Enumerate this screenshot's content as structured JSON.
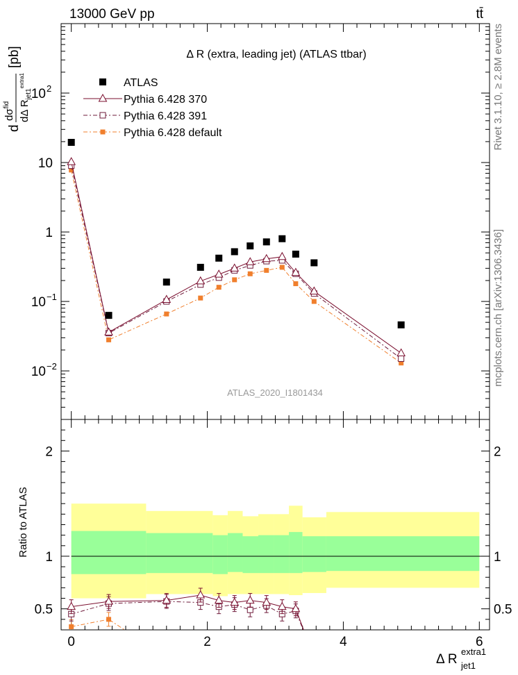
{
  "header": {
    "left": "13000 GeV pp",
    "right": "tt̄"
  },
  "side_labels": {
    "rivet": "Rivet 3.1.10, ≥ 2.8M events",
    "mcplots": "mcplots.cern.ch [arXiv:1306.3436]"
  },
  "chart_data": {
    "type": "scatter",
    "title": "Δ R (extra, leading jet) (ATLAS ttbar)",
    "watermark": "ATLAS_2020_I1801434",
    "xlabel": "Δ R",
    "xlabel_sup": "extra1",
    "xlabel_sub": "jet1",
    "ylabel": "dσ/dΔR [pb]",
    "ylabel_parts": {
      "d": "d",
      "sigma": "dσ",
      "fid": "fid",
      "den": "dΔ R",
      "den_sub": "jet1",
      "den_sup": "extra1",
      "unit": "[pb]"
    },
    "xlim": [
      -0.15,
      6.15
    ],
    "ylim_log": [
      0.002,
      1000
    ],
    "x_ticks": [
      0,
      2,
      4,
      6
    ],
    "x_tick_labels": [
      "0",
      "2",
      "4",
      "6"
    ],
    "y_ticks": [
      {
        "v": 0.01,
        "base": "10",
        "exp": "−2"
      },
      {
        "v": 0.1,
        "base": "10",
        "exp": "−1"
      },
      {
        "v": 1,
        "base": "1",
        "exp": ""
      },
      {
        "v": 10,
        "base": "10",
        "exp": ""
      },
      {
        "v": 100,
        "base": "10",
        "exp": "2"
      }
    ],
    "legend": [
      "ATLAS",
      "Pythia 6.428 370",
      "Pythia 6.428 391",
      "Pythia 6.428 default"
    ],
    "atlas": {
      "name": "ATLAS",
      "x": [
        0.0,
        0.55,
        1.4,
        1.9,
        2.17,
        2.4,
        2.63,
        2.87,
        3.1,
        3.3,
        3.57,
        4.85
      ],
      "y": [
        19.5,
        0.063,
        0.19,
        0.31,
        0.42,
        0.52,
        0.63,
        0.72,
        0.8,
        0.48,
        0.36,
        0.046
      ]
    },
    "series": [
      {
        "name": "Pythia 6.428 370",
        "color": "#7a0e2e",
        "marker": "triangle-open",
        "dash": "",
        "x": [
          0.0,
          0.55,
          1.4,
          1.9,
          2.17,
          2.4,
          2.63,
          2.87,
          3.1,
          3.3,
          3.57,
          4.85
        ],
        "y": [
          10.2,
          0.036,
          0.106,
          0.196,
          0.245,
          0.3,
          0.37,
          0.41,
          0.44,
          0.26,
          0.14,
          0.018
        ],
        "ratio": [
          0.52,
          0.57,
          0.58,
          0.63,
          0.58,
          0.56,
          0.58,
          0.56,
          0.52,
          0.5,
          null,
          null
        ]
      },
      {
        "name": "Pythia 6.428 391",
        "color": "#6e1a3a",
        "marker": "square-open",
        "dash": "6,3,2,3",
        "x": [
          0.0,
          0.55,
          1.4,
          1.9,
          2.17,
          2.4,
          2.63,
          2.87,
          3.1,
          3.3,
          3.57,
          4.85
        ],
        "y": [
          9.0,
          0.035,
          0.1,
          0.175,
          0.22,
          0.28,
          0.33,
          0.38,
          0.39,
          0.25,
          0.13,
          0.015
        ],
        "ratio": [
          0.45,
          0.55,
          0.57,
          0.56,
          0.52,
          0.54,
          0.49,
          0.53,
          0.45,
          0.48,
          null,
          null
        ]
      },
      {
        "name": "Pythia 6.428 default",
        "color": "#f07f2d",
        "marker": "square-filled",
        "dash": "6,3,2,3",
        "x": [
          0.0,
          0.55,
          1.4,
          1.9,
          2.17,
          2.4,
          2.63,
          2.87,
          3.1,
          3.3,
          3.57,
          4.85
        ],
        "y": [
          7.8,
          0.028,
          0.066,
          0.112,
          0.16,
          0.205,
          0.25,
          0.28,
          0.31,
          0.18,
          0.1,
          0.013
        ],
        "ratio": [
          0.33,
          0.4,
          null,
          null,
          null,
          null,
          null,
          null,
          null,
          null,
          null,
          null
        ]
      }
    ],
    "ratio_panel": {
      "ylabel": "Ratio to ATLAS",
      "ylim": [
        0.3,
        2.3
      ],
      "y_ticks": [
        0.5,
        1,
        2
      ],
      "y_tick_labels": [
        "0.5",
        "1",
        "2"
      ],
      "bins": [
        {
          "lo": 0.0,
          "hi": 1.1,
          "inner": [
            0.83,
            1.24
          ],
          "outer": [
            0.6,
            1.5
          ]
        },
        {
          "lo": 1.1,
          "hi": 2.08,
          "inner": [
            0.84,
            1.22
          ],
          "outer": [
            0.64,
            1.43
          ]
        },
        {
          "lo": 2.08,
          "hi": 2.3,
          "inner": [
            0.83,
            1.2
          ],
          "outer": [
            0.62,
            1.39
          ]
        },
        {
          "lo": 2.3,
          "hi": 2.52,
          "inner": [
            0.85,
            1.22
          ],
          "outer": [
            0.64,
            1.43
          ]
        },
        {
          "lo": 2.52,
          "hi": 2.75,
          "inner": [
            0.84,
            1.19
          ],
          "outer": [
            0.64,
            1.38
          ]
        },
        {
          "lo": 2.75,
          "hi": 2.98,
          "inner": [
            0.84,
            1.2
          ],
          "outer": [
            0.64,
            1.4
          ]
        },
        {
          "lo": 2.98,
          "hi": 3.2,
          "inner": [
            0.84,
            1.2
          ],
          "outer": [
            0.64,
            1.4
          ]
        },
        {
          "lo": 3.2,
          "hi": 3.4,
          "inner": [
            0.84,
            1.23
          ],
          "outer": [
            0.63,
            1.48
          ]
        },
        {
          "lo": 3.4,
          "hi": 3.75,
          "inner": [
            0.85,
            1.19
          ],
          "outer": [
            0.65,
            1.37
          ]
        },
        {
          "lo": 3.75,
          "hi": 6.0,
          "inner": [
            0.86,
            1.19
          ],
          "outer": [
            0.7,
            1.42
          ]
        }
      ]
    }
  }
}
